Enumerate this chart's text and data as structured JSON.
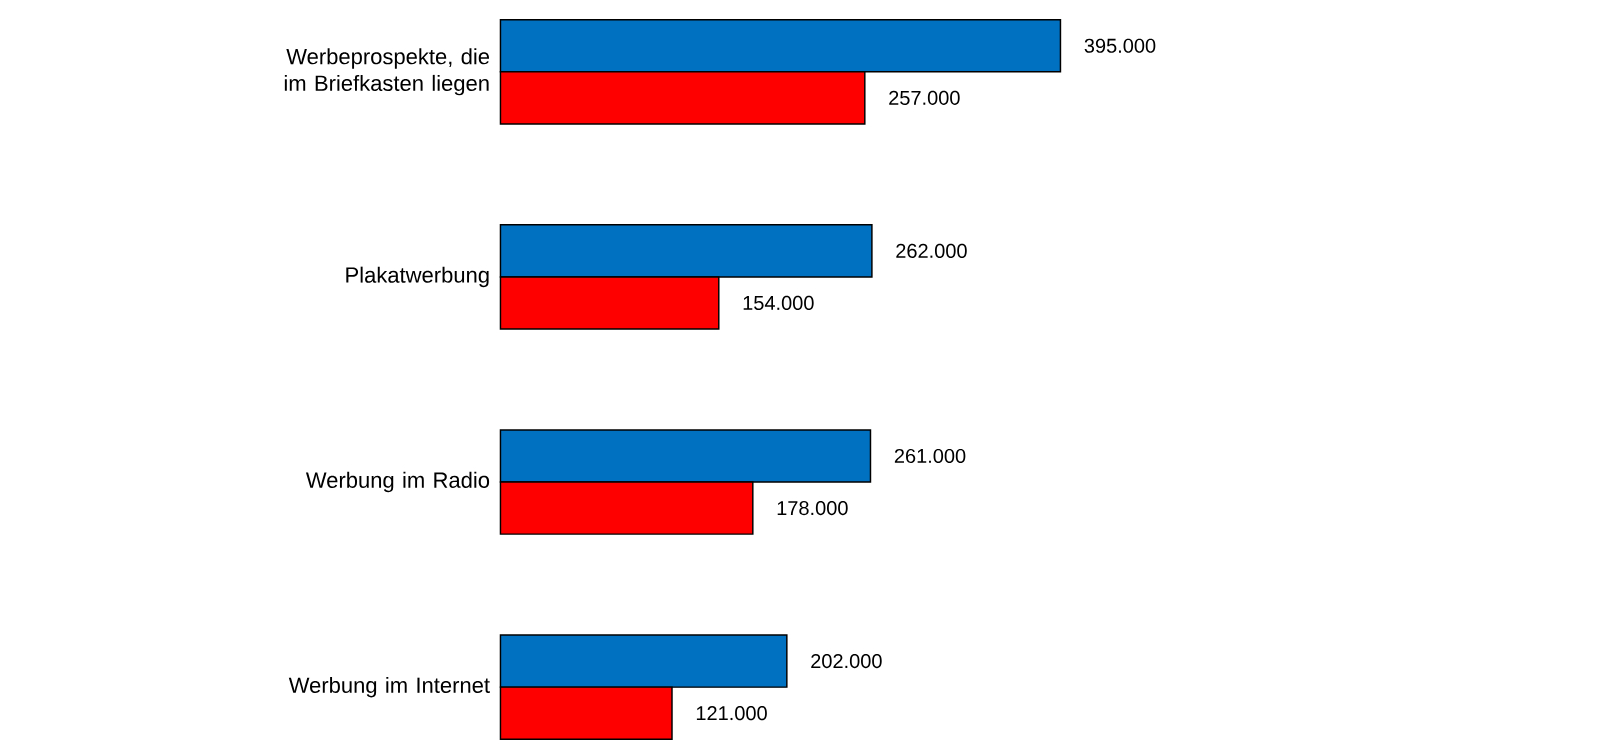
{
  "chart_data": {
    "type": "bar",
    "orientation": "horizontal",
    "categories": [
      "Werbeprospekte, die im Briefkasten liegen",
      "Plakatwerbung",
      "Werbung im Radio",
      "Werbung im Internet"
    ],
    "series": [
      {
        "color": "#0070c0",
        "values": [
          395000,
          262000,
          261000,
          202000
        ],
        "value_labels": [
          "395.000",
          "262.000",
          "261.000",
          "202.000"
        ]
      },
      {
        "color": "#ff0000",
        "values": [
          257000,
          154000,
          178000,
          121000
        ],
        "value_labels": [
          "257.000",
          "154.000",
          "178.000",
          "121.000"
        ]
      }
    ]
  }
}
